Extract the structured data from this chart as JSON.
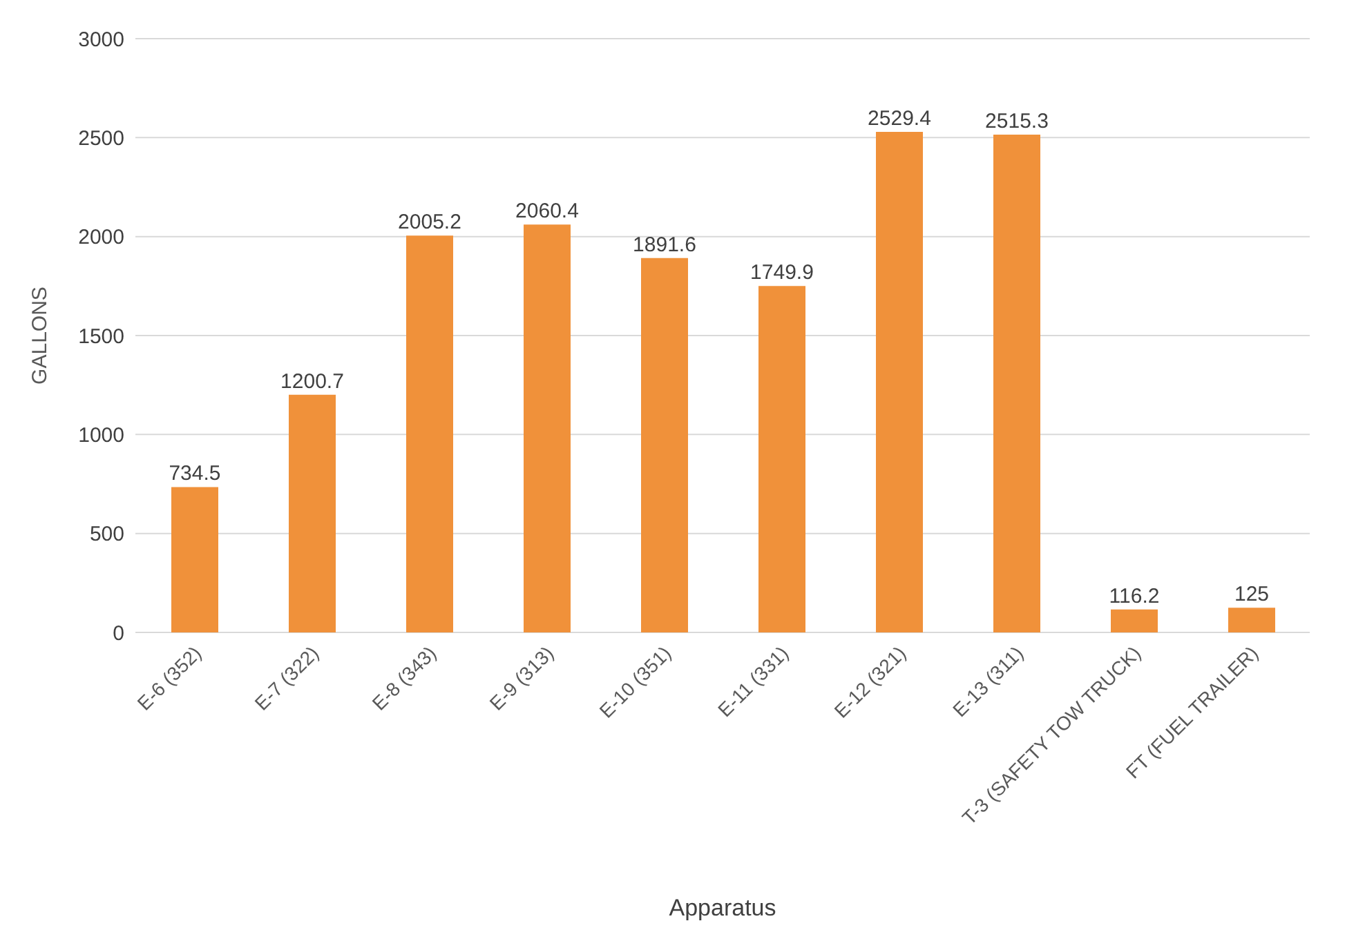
{
  "chart_data": {
    "type": "bar",
    "xlabel": "Apparatus",
    "ylabel": "GALLONS",
    "categories": [
      "E-6 (352)",
      "E-7 (322)",
      "E-8 (343)",
      "E-9 (313)",
      "E-10 (351)",
      "E-11 (331)",
      "E-12 (321)",
      "E-13 (311)",
      "T-3 (SAFETY TOW TRUCK)",
      "FT (FUEL TRAILER)"
    ],
    "values": [
      734.5,
      1200.7,
      2005.2,
      2060.4,
      1891.6,
      1749.9,
      2529.4,
      2515.3,
      116.2,
      125
    ],
    "color": "#f0913a",
    "ylim": [
      0,
      3000
    ],
    "yticks": [
      0,
      500,
      1000,
      1500,
      2000,
      2500,
      3000
    ],
    "grid": "y",
    "data_labels": true,
    "legend": false
  }
}
